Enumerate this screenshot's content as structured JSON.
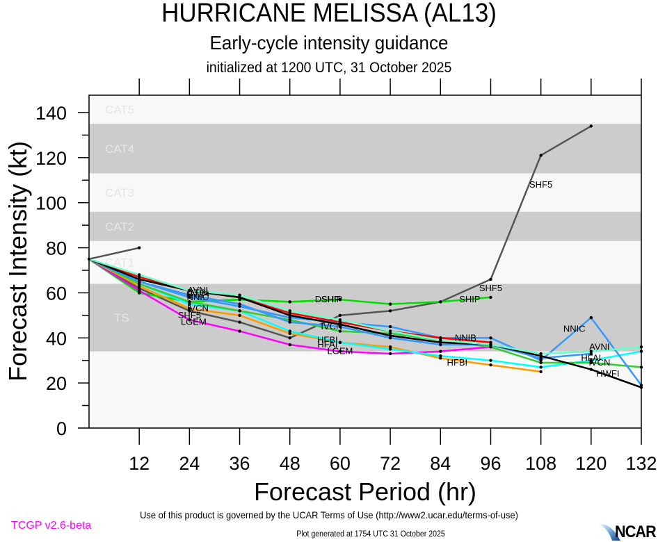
{
  "header": {
    "title": "HURRICANE MELISSA (AL13)",
    "subtitle": "Early-cycle intensity guidance",
    "initialized": "initialized at 1200 UTC, 31 October 2025"
  },
  "footer": {
    "terms": "Use of this product is governed by the UCAR Terms of Use (http://www2.ucar.edu/terms-of-use)",
    "generated": "Plot generated at 1754 UTC   31 October 2025",
    "version": "TCGP v2.6-beta",
    "logo_text": "NCAR"
  },
  "chart_data": {
    "type": "line",
    "title": "HURRICANE MELISSA (AL13)",
    "subtitle": "Early-cycle intensity guidance",
    "xlabel": "Forecast Period (hr)",
    "ylabel": "Forecast Intensity (kt)",
    "xlim": [
      0,
      132
    ],
    "ylim": [
      0,
      140
    ],
    "xticks": [
      12,
      24,
      36,
      48,
      60,
      72,
      84,
      96,
      108,
      120,
      132
    ],
    "yticks": [
      0,
      20,
      40,
      60,
      80,
      100,
      120,
      140
    ],
    "bands": [
      {
        "label": "TS",
        "range": [
          34,
          64
        ],
        "color": "#cccccc"
      },
      {
        "label": "CAT1",
        "range": [
          64,
          83
        ],
        "color": "#f8f8f8"
      },
      {
        "label": "CAT2",
        "range": [
          83,
          96
        ],
        "color": "#cccccc"
      },
      {
        "label": "CAT3",
        "range": [
          96,
          113
        ],
        "color": "#f8f8f8"
      },
      {
        "label": "CAT4",
        "range": [
          113,
          135
        ],
        "color": "#cccccc"
      },
      {
        "label": "CAT5",
        "range": [
          135,
          140
        ],
        "color": "#f8f8f8"
      }
    ],
    "below_ts_color": "#f8f8f8",
    "series": [
      {
        "name": "SHF5",
        "color": "#555555",
        "x": [
          0,
          12,
          24,
          36,
          48,
          60,
          72,
          84,
          96,
          108,
          120
        ],
        "values": [
          75,
          62,
          52,
          47,
          40,
          50,
          52,
          56,
          66,
          121,
          134
        ],
        "label_at": [
          [
            24,
            50
          ],
          [
            96,
            62
          ],
          [
            108,
            108
          ]
        ]
      },
      {
        "name": "",
        "color": "#555555",
        "x": [
          0,
          12
        ],
        "values": [
          75,
          80
        ],
        "label_at": []
      },
      {
        "name": "SHIP",
        "color": "#00e000",
        "x": [
          0,
          12,
          24,
          36,
          48,
          60,
          72,
          84,
          96
        ],
        "values": [
          75,
          60,
          56,
          57,
          56,
          57,
          55,
          56,
          58
        ],
        "label_at": [
          [
            58,
            57
          ],
          [
            91,
            57
          ]
        ]
      },
      {
        "name": "DSHP",
        "color": "#00e000",
        "x": [
          0,
          12,
          24,
          36,
          48,
          60
        ],
        "values": [
          75,
          60,
          56,
          57,
          56,
          57
        ],
        "label_at": [
          [
            57,
            57
          ]
        ]
      },
      {
        "name": "LGEM",
        "color": "#ff00ff",
        "x": [
          0,
          12,
          24,
          36,
          48,
          60,
          72,
          84,
          96
        ],
        "values": [
          75,
          61,
          48,
          43,
          37,
          34,
          33,
          34,
          36
        ],
        "label_at": [
          [
            25,
            47
          ],
          [
            60,
            34
          ]
        ]
      },
      {
        "name": "HFBI",
        "color": "#ff9900",
        "x": [
          0,
          12,
          24,
          36,
          48,
          60,
          72,
          84,
          96,
          108
        ],
        "values": [
          75,
          63,
          53,
          50,
          42,
          38,
          36,
          31,
          28,
          25
        ],
        "label_at": [
          [
            57,
            39
          ],
          [
            88,
            29
          ]
        ]
      },
      {
        "name": "HFAI",
        "color": "#00ffff",
        "x": [
          0,
          12,
          24,
          36,
          48,
          60,
          72,
          84,
          96,
          108,
          120,
          132
        ],
        "values": [
          75,
          64,
          55,
          52,
          43,
          38,
          35,
          32,
          30,
          27,
          30,
          34
        ],
        "label_at": [
          [
            57,
            37
          ],
          [
            120,
            31
          ]
        ]
      },
      {
        "name": "IVCN",
        "color": "#33cc33",
        "x": [
          0,
          12,
          24,
          36,
          48,
          60,
          72,
          84,
          96,
          108,
          120,
          132
        ],
        "values": [
          75,
          64,
          56,
          52,
          48,
          43,
          42,
          39,
          36,
          29,
          29,
          27
        ],
        "label_at": [
          [
            26,
            53
          ],
          [
            58,
            45
          ],
          [
            122,
            29
          ]
        ]
      },
      {
        "name": "NNIC",
        "color": "#3399ff",
        "x": [
          0,
          12,
          24,
          36,
          48,
          60,
          72,
          84,
          96,
          108,
          120,
          132
        ],
        "values": [
          75,
          65,
          58,
          54,
          49,
          47,
          45,
          40,
          40,
          30,
          49,
          19
        ],
        "label_at": [
          [
            26,
            58
          ],
          [
            116,
            44
          ]
        ]
      },
      {
        "name": "NNIB",
        "color": "#3399ff",
        "x": [
          0,
          12,
          24,
          36,
          48,
          60,
          72,
          84,
          96,
          108,
          120
        ],
        "values": [
          75,
          65,
          59,
          55,
          47,
          45,
          40,
          37,
          37,
          31,
          33
        ],
        "label_at": [
          [
            90,
            40
          ]
        ]
      },
      {
        "name": "CTCI",
        "color": "#ff0000",
        "x": [
          0,
          12,
          24,
          36,
          48,
          60,
          72,
          84,
          96
        ],
        "values": [
          75,
          67,
          61,
          58,
          51,
          47,
          43,
          40,
          38
        ],
        "label_at": [
          [
            26,
            60
          ]
        ]
      },
      {
        "name": "HWFI",
        "color": "#000000",
        "x": [
          0,
          12,
          24,
          36,
          48,
          60,
          72,
          84,
          96,
          108,
          120,
          132
        ],
        "values": [
          75,
          66,
          61,
          58,
          50,
          46,
          41,
          38,
          37,
          32,
          26,
          18
        ],
        "label_at": [
          [
            26,
            59
          ],
          [
            124,
            24
          ]
        ]
      },
      {
        "name": "AVNI",
        "color": "#66ffcc",
        "x": [
          0,
          12,
          24,
          36,
          48,
          60,
          72,
          84,
          96,
          108,
          120,
          132
        ],
        "values": [
          75,
          68,
          61,
          59,
          52,
          48,
          43,
          39,
          37,
          33,
          34,
          36
        ],
        "label_at": [
          [
            26,
            61
          ],
          [
            122,
            36
          ]
        ]
      }
    ]
  }
}
